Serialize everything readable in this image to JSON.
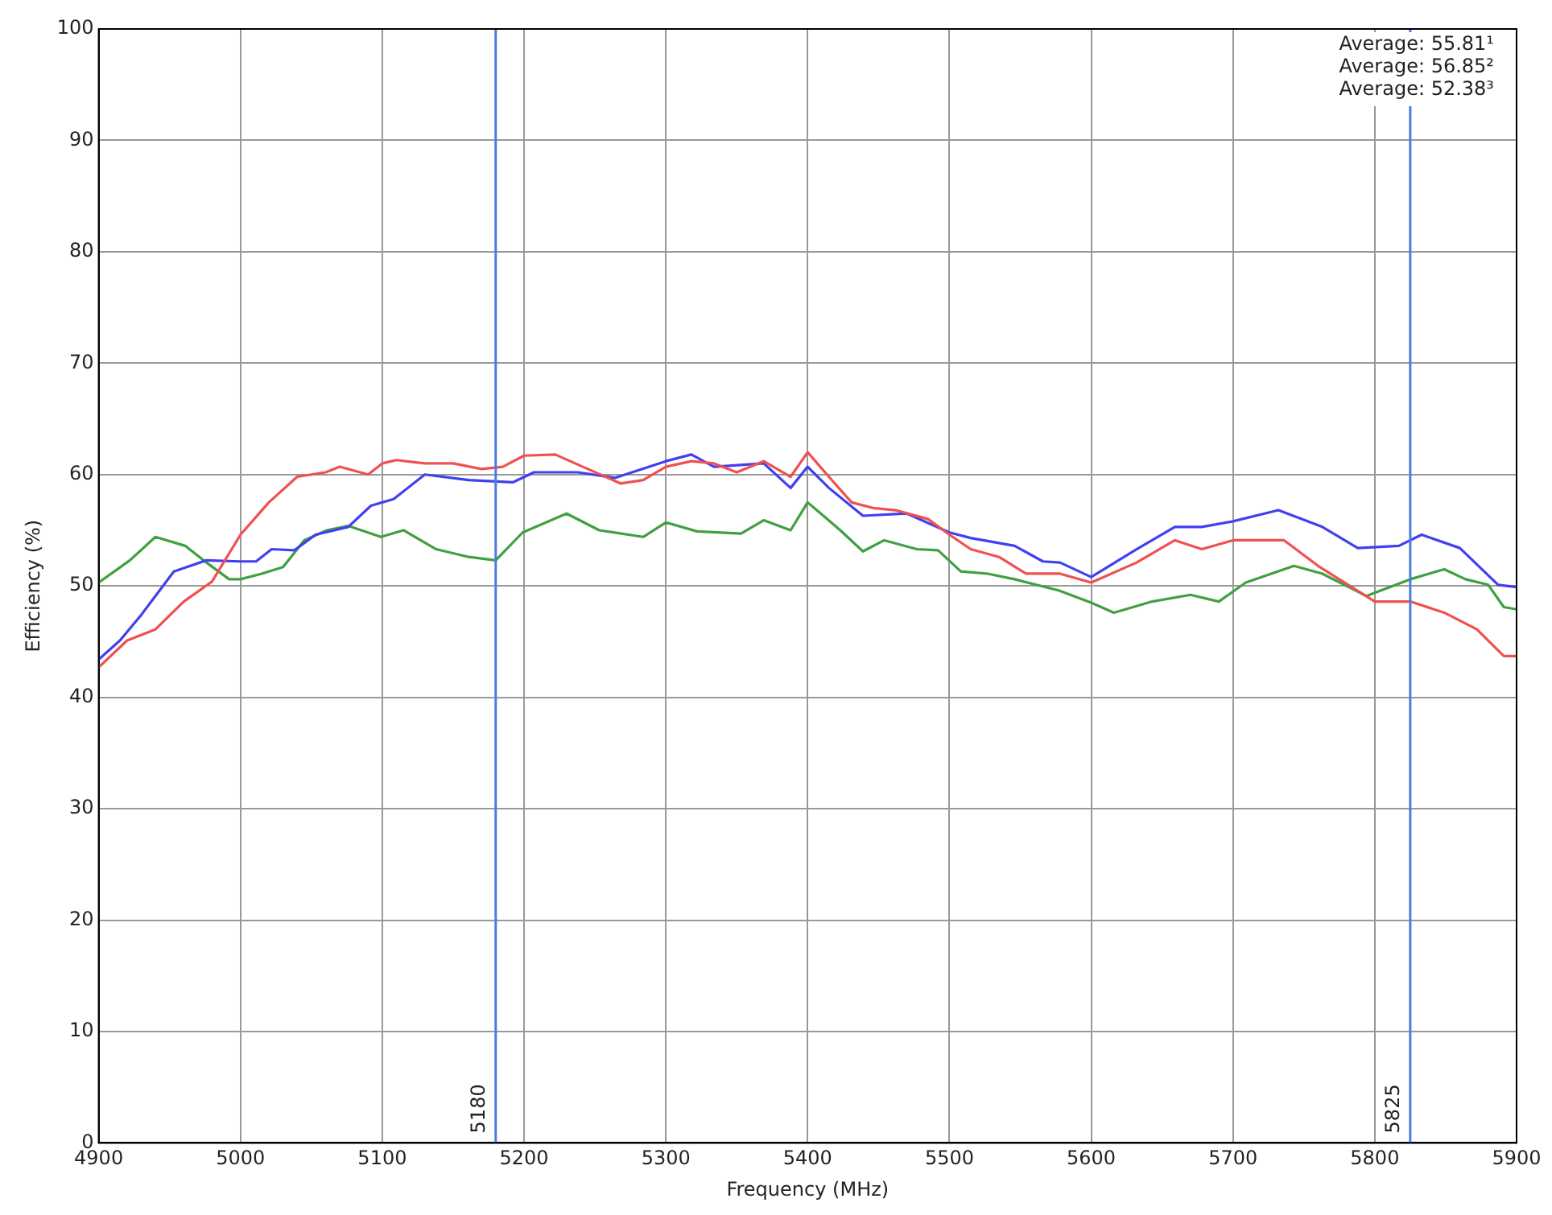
{
  "chart_data": {
    "type": "line",
    "xlabel": "Frequency (MHz)",
    "ylabel": "Efficiency (%)",
    "xlim": [
      4900,
      5900
    ],
    "xticks": [
      4900,
      5000,
      5100,
      5200,
      5300,
      5400,
      5500,
      5600,
      5700,
      5800,
      5900
    ],
    "ylim": [
      0,
      100
    ],
    "yticks": [
      0,
      10,
      20,
      30,
      40,
      50,
      60,
      70,
      80,
      90,
      100
    ],
    "grid": true,
    "legend": false,
    "marker": "none",
    "line_style": "solid",
    "annotations": [
      "Average: 55.81¹",
      "Average: 56.85²",
      "Average: 52.38³"
    ],
    "ref_lines": [
      {
        "axis": "x",
        "value": 5180,
        "label": "5180",
        "color": "#4a7de0"
      },
      {
        "axis": "x",
        "value": 5825,
        "label": "5825",
        "color": "#4a7de0"
      }
    ],
    "series": [
      {
        "color": "#f05050",
        "x": [
          4900,
          4920,
          4940,
          4960,
          4980,
          5000,
          5020,
          5040,
          5060,
          5070,
          5090,
          5100,
          5110,
          5130,
          5150,
          5170,
          5185,
          5200,
          5222,
          5245,
          5268,
          5284,
          5300,
          5318,
          5334,
          5350,
          5369,
          5388,
          5400,
          5415,
          5431,
          5446,
          5462,
          5485,
          5500,
          5515,
          5535,
          5554,
          5578,
          5600,
          5632,
          5659,
          5678,
          5700,
          5736,
          5760,
          5800,
          5825,
          5849,
          5872,
          5891,
          5900
        ],
        "values": [
          42.7,
          45.1,
          46.1,
          48.6,
          50.4,
          54.6,
          57.5,
          59.8,
          60.2,
          60.7,
          60,
          61,
          61.3,
          61,
          61,
          60.5,
          60.7,
          61.7,
          61.8,
          60.5,
          59.2,
          59.5,
          60.7,
          61.2,
          61,
          60.2,
          61.2,
          59.8,
          62,
          59.8,
          57.5,
          57,
          56.8,
          56,
          54.6,
          53.3,
          52.6,
          51.1,
          51.1,
          50.3,
          52.1,
          54.1,
          53.3,
          54.1,
          54.1,
          51.8,
          48.6,
          48.6,
          47.6,
          46.1,
          43.7,
          43.7
        ]
      },
      {
        "color": "#4040f0",
        "x": [
          4900,
          4915,
          4930,
          4953,
          4976,
          5000,
          5011,
          5022,
          5038,
          5053,
          5076,
          5092,
          5108,
          5130,
          5161,
          5192,
          5207,
          5238,
          5264,
          5300,
          5318,
          5334,
          5369,
          5388,
          5400,
          5415,
          5439,
          5470,
          5500,
          5515,
          5546,
          5566,
          5578,
          5600,
          5632,
          5659,
          5678,
          5700,
          5732,
          5763,
          5788,
          5817,
          5833,
          5860,
          5887,
          5900
        ],
        "values": [
          43.4,
          45.1,
          47.4,
          51.3,
          52.3,
          52.2,
          52.2,
          53.3,
          53.2,
          54.6,
          55.3,
          57.2,
          57.8,
          60,
          59.5,
          59.3,
          60.2,
          60.2,
          59.7,
          61.2,
          61.8,
          60.7,
          61,
          58.8,
          60.7,
          58.8,
          56.3,
          56.5,
          54.8,
          54.3,
          53.6,
          52.2,
          52.1,
          50.8,
          53.3,
          55.3,
          55.3,
          55.8,
          56.8,
          55.3,
          53.4,
          53.6,
          54.6,
          53.4,
          50.1,
          49.9
        ]
      },
      {
        "color": "#40a040",
        "x": [
          4900,
          4922,
          4940,
          4961,
          4976,
          4992,
          5000,
          5015,
          5030,
          5045,
          5061,
          5076,
          5099,
          5115,
          5138,
          5161,
          5180,
          5199,
          5230,
          5253,
          5284,
          5300,
          5322,
          5353,
          5369,
          5388,
          5400,
          5423,
          5439,
          5454,
          5477,
          5492,
          5508,
          5527,
          5546,
          5577,
          5600,
          5616,
          5643,
          5670,
          5690,
          5709,
          5743,
          5763,
          5794,
          5825,
          5849,
          5864,
          5880,
          5891,
          5900
        ],
        "values": [
          50.3,
          52.3,
          54.4,
          53.6,
          52.1,
          50.6,
          50.6,
          51.1,
          51.7,
          54.1,
          55,
          55.4,
          54.4,
          55,
          53.3,
          52.6,
          52.3,
          54.8,
          56.5,
          55,
          54.4,
          55.7,
          54.9,
          54.7,
          55.9,
          55,
          57.5,
          55,
          53.1,
          54.1,
          53.3,
          53.2,
          51.3,
          51.1,
          50.6,
          49.6,
          48.5,
          47.6,
          48.6,
          49.2,
          48.6,
          50.3,
          51.8,
          51.1,
          49.1,
          50.6,
          51.5,
          50.6,
          50.1,
          48.1,
          47.9
        ]
      }
    ]
  }
}
